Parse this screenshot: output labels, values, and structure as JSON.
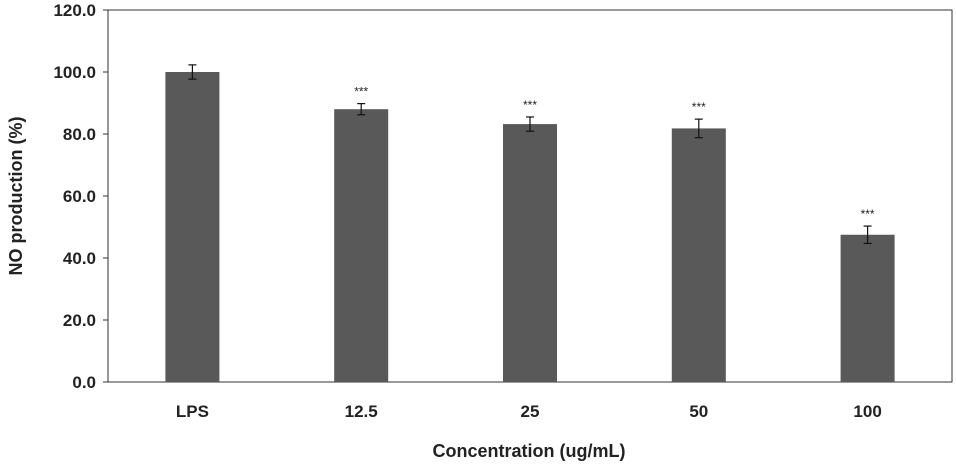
{
  "chart_data": {
    "type": "bar",
    "title": "",
    "xlabel": "Concentration (ug/mL)",
    "ylabel": "NO production (%)",
    "categories": [
      "LPS",
      "12.5",
      "25",
      "50",
      "100"
    ],
    "values": [
      100.0,
      88.0,
      83.2,
      81.8,
      47.5
    ],
    "error": [
      2.3,
      1.8,
      2.3,
      3.0,
      2.8
    ],
    "significance": [
      "",
      "***",
      "***",
      "***",
      "***"
    ],
    "ylim": [
      0,
      120
    ],
    "yticks": [
      "0.0",
      "20.0",
      "40.0",
      "60.0",
      "80.0",
      "100.0",
      "120.0"
    ],
    "grid": false,
    "bar_color": "#595959"
  }
}
